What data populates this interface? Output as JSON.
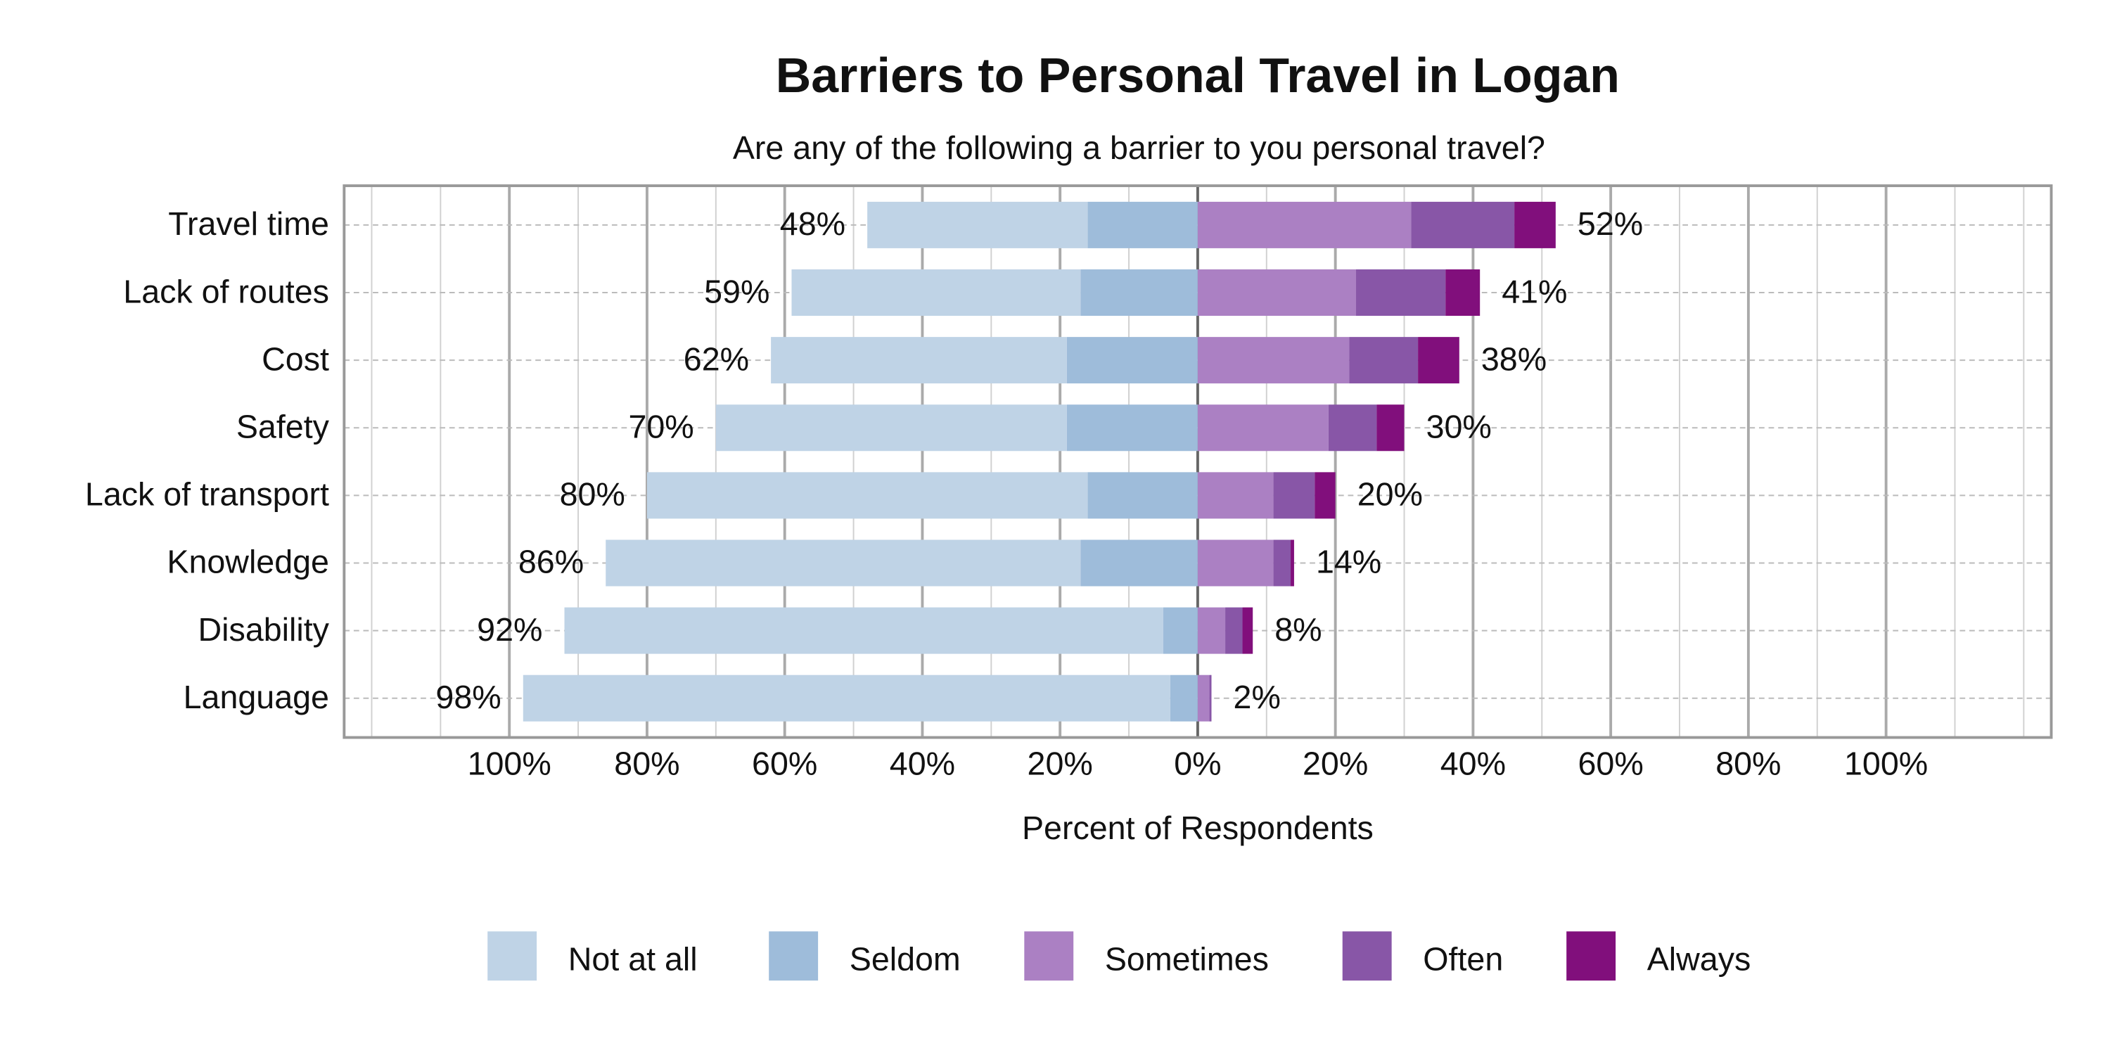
{
  "chart_data": {
    "type": "diverging_bar",
    "title": "Barriers to Personal Travel in Logan",
    "subtitle": "Are any of the following a barrier to you personal travel?",
    "x_label": "Percent of Respondents",
    "categories": [
      "Travel time",
      "Lack of routes",
      "Cost",
      "Safety",
      "Lack of transport",
      "Knowledge",
      "Disability",
      "Language"
    ],
    "series": [
      {
        "name": "Not at all",
        "color": "#bfd3e6",
        "side": "negative",
        "values": [
          32,
          42,
          43,
          51,
          64,
          69,
          87,
          94
        ]
      },
      {
        "name": "Seldom",
        "color": "#9ebcda",
        "side": "negative",
        "values": [
          16,
          17,
          19,
          19,
          16,
          17,
          5,
          4
        ]
      },
      {
        "name": "Sometimes",
        "color": "#ab80c3",
        "side": "positive",
        "values": [
          31,
          23,
          22,
          19,
          11,
          11,
          4,
          1.7
        ]
      },
      {
        "name": "Often",
        "color": "#8856a7",
        "side": "positive",
        "values": [
          15,
          13,
          10,
          7,
          6,
          2.5,
          2.5,
          0.3
        ]
      },
      {
        "name": "Always",
        "color": "#810f7c",
        "side": "positive",
        "values": [
          6,
          5,
          6,
          4,
          3,
          0.5,
          1.5,
          0
        ]
      }
    ],
    "negative_totals": {
      "values": [
        48,
        59,
        62,
        70,
        80,
        86,
        92,
        98
      ],
      "value_labels": [
        "48%",
        "59%",
        "62%",
        "70%",
        "80%",
        "86%",
        "92%",
        "98%"
      ]
    },
    "positive_totals": {
      "values": [
        52,
        41,
        38,
        30,
        20,
        14,
        8,
        2
      ],
      "value_labels": [
        "52%",
        "41%",
        "38%",
        "30%",
        "20%",
        "14%",
        "8%",
        "2%"
      ]
    },
    "xlim": [
      -124,
      124
    ],
    "xticks": [
      {
        "value": -100,
        "label": "100%"
      },
      {
        "value": -80,
        "label": "80%"
      },
      {
        "value": -60,
        "label": "60%"
      },
      {
        "value": -40,
        "label": "40%"
      },
      {
        "value": -20,
        "label": "20%"
      },
      {
        "value": 0,
        "label": "0%"
      },
      {
        "value": 20,
        "label": "20%"
      },
      {
        "value": 40,
        "label": "40%"
      },
      {
        "value": 60,
        "label": "60%"
      },
      {
        "value": 80,
        "label": "80%"
      },
      {
        "value": 100,
        "label": "100%"
      }
    ],
    "xticks_minor": [
      -120,
      -110,
      -90,
      -70,
      -50,
      -30,
      -10,
      10,
      30,
      50,
      70,
      90,
      110,
      120
    ],
    "grid": true,
    "legend": "bottom"
  }
}
